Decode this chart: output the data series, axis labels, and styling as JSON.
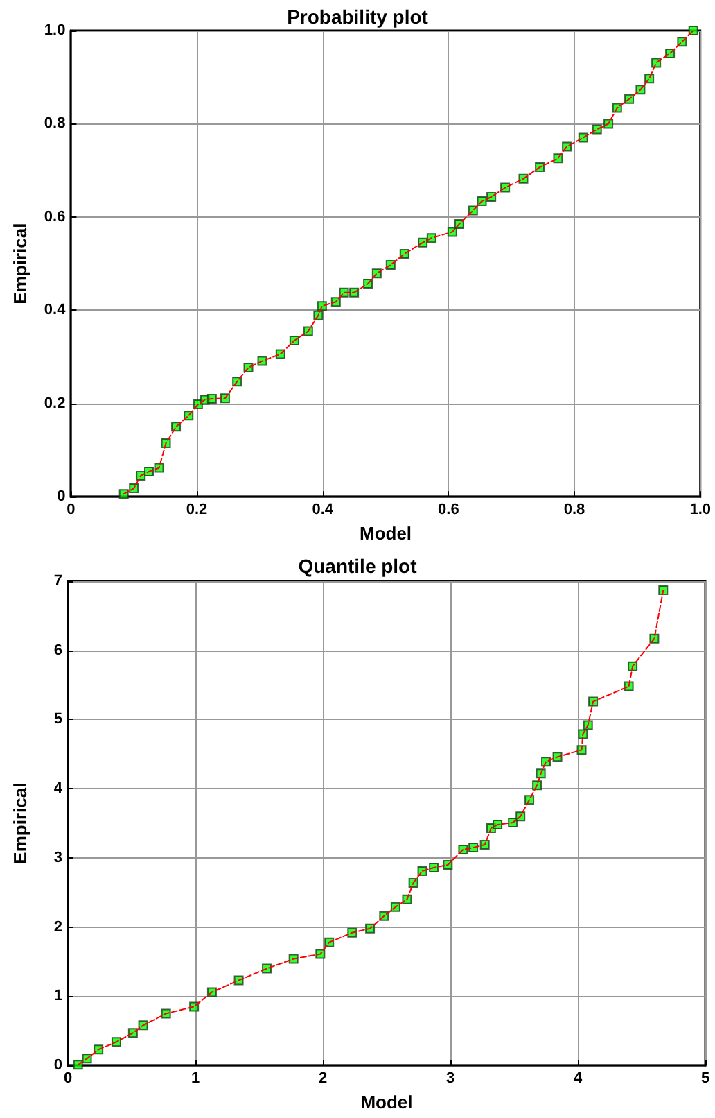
{
  "chart_data": [
    {
      "type": "scatter",
      "title": "Probability plot",
      "xlabel": "Model",
      "ylabel": "Empirical",
      "xlim": [
        0,
        1
      ],
      "ylim": [
        0,
        1
      ],
      "xticks": [
        0,
        0.2,
        0.4,
        0.6,
        0.8,
        {
          "value": 1,
          "label": "1.0"
        }
      ],
      "yticks": [
        0,
        0.2,
        0.4,
        0.6,
        0.8,
        {
          "value": 1,
          "label": "1.0"
        }
      ],
      "grid": true,
      "series": [
        {
          "type": "line",
          "color": "#ff0000",
          "line_style": "dashed",
          "marker": "none",
          "x": [
            0.084,
            0.1,
            0.111,
            0.124,
            0.14,
            0.151,
            0.167,
            0.187,
            0.202,
            0.213,
            0.224,
            0.245,
            0.264,
            0.282,
            0.304,
            0.333,
            0.355,
            0.377,
            0.393,
            0.399,
            0.421,
            0.434,
            0.45,
            0.472,
            0.486,
            0.508,
            0.53,
            0.559,
            0.573,
            0.606,
            0.617,
            0.639,
            0.653,
            0.668,
            0.69,
            0.719,
            0.745,
            0.774,
            0.788,
            0.814,
            0.836,
            0.854,
            0.868,
            0.887,
            0.905,
            0.919,
            0.93,
            0.952,
            0.971,
            0.989
          ],
          "values": [
            0.006,
            0.018,
            0.045,
            0.054,
            0.062,
            0.115,
            0.15,
            0.174,
            0.198,
            0.208,
            0.21,
            0.211,
            0.247,
            0.277,
            0.291,
            0.306,
            0.335,
            0.355,
            0.389,
            0.409,
            0.418,
            0.438,
            0.438,
            0.457,
            0.479,
            0.497,
            0.521,
            0.545,
            0.555,
            0.568,
            0.585,
            0.614,
            0.634,
            0.643,
            0.663,
            0.682,
            0.707,
            0.726,
            0.751,
            0.77,
            0.788,
            0.8,
            0.834,
            0.853,
            0.873,
            0.897,
            0.931,
            0.951,
            0.976,
            1.0
          ]
        },
        {
          "color": "#00ff00",
          "marker": "square",
          "x": [
            0.084,
            0.1,
            0.111,
            0.124,
            0.14,
            0.151,
            0.167,
            0.187,
            0.202,
            0.213,
            0.224,
            0.245,
            0.264,
            0.282,
            0.304,
            0.333,
            0.355,
            0.377,
            0.393,
            0.399,
            0.421,
            0.434,
            0.45,
            0.472,
            0.486,
            0.508,
            0.53,
            0.559,
            0.573,
            0.606,
            0.617,
            0.639,
            0.653,
            0.668,
            0.69,
            0.719,
            0.745,
            0.774,
            0.788,
            0.814,
            0.836,
            0.854,
            0.868,
            0.887,
            0.905,
            0.919,
            0.93,
            0.952,
            0.971,
            0.989
          ],
          "values": [
            0.006,
            0.018,
            0.045,
            0.054,
            0.062,
            0.115,
            0.15,
            0.174,
            0.198,
            0.208,
            0.21,
            0.211,
            0.247,
            0.277,
            0.291,
            0.306,
            0.335,
            0.355,
            0.389,
            0.409,
            0.418,
            0.438,
            0.438,
            0.457,
            0.479,
            0.497,
            0.521,
            0.545,
            0.555,
            0.568,
            0.585,
            0.614,
            0.634,
            0.643,
            0.663,
            0.682,
            0.707,
            0.726,
            0.751,
            0.77,
            0.788,
            0.8,
            0.834,
            0.853,
            0.873,
            0.897,
            0.931,
            0.951,
            0.976,
            1.0
          ]
        }
      ]
    },
    {
      "type": "scatter",
      "title": "Quantile plot",
      "xlabel": "Model",
      "ylabel": "Empirical",
      "xlim": [
        0,
        5
      ],
      "ylim": [
        0,
        7
      ],
      "xticks": [
        0,
        1,
        2,
        3,
        4,
        5
      ],
      "yticks": [
        0,
        1,
        2,
        3,
        4,
        5,
        6,
        7
      ],
      "grid": true,
      "series": [
        {
          "type": "line",
          "color": "#ff0000",
          "line_style": "dashed",
          "marker": "none",
          "x": [
            0.08,
            0.15,
            0.24,
            0.38,
            0.51,
            0.59,
            0.77,
            0.99,
            1.13,
            1.34,
            1.56,
            1.77,
            1.98,
            2.05,
            2.23,
            2.37,
            2.48,
            2.57,
            2.66,
            2.71,
            2.78,
            2.87,
            2.98,
            3.1,
            3.18,
            3.27,
            3.32,
            3.37,
            3.49,
            3.55,
            3.62,
            3.68,
            3.71,
            3.75,
            3.84,
            4.03,
            4.04,
            4.08,
            4.12,
            4.4,
            4.43,
            4.6,
            4.67
          ],
          "values": [
            0.01,
            0.1,
            0.23,
            0.34,
            0.47,
            0.58,
            0.75,
            0.85,
            1.06,
            1.23,
            1.4,
            1.54,
            1.61,
            1.78,
            1.92,
            1.98,
            2.16,
            2.29,
            2.4,
            2.64,
            2.81,
            2.86,
            2.9,
            3.12,
            3.15,
            3.19,
            3.43,
            3.48,
            3.51,
            3.6,
            3.84,
            4.05,
            4.22,
            4.39,
            4.46,
            4.56,
            4.79,
            4.92,
            5.26,
            5.48,
            5.77,
            6.17,
            6.87
          ]
        },
        {
          "color": "#00ff00",
          "marker": "square",
          "x": [
            0.08,
            0.15,
            0.24,
            0.38,
            0.51,
            0.59,
            0.77,
            0.99,
            1.13,
            1.34,
            1.56,
            1.77,
            1.98,
            2.05,
            2.23,
            2.37,
            2.48,
            2.57,
            2.66,
            2.71,
            2.78,
            2.87,
            2.98,
            3.1,
            3.18,
            3.27,
            3.32,
            3.37,
            3.49,
            3.55,
            3.62,
            3.68,
            3.71,
            3.75,
            3.84,
            4.03,
            4.04,
            4.08,
            4.12,
            4.4,
            4.43,
            4.6,
            4.67
          ],
          "values": [
            0.01,
            0.1,
            0.23,
            0.34,
            0.47,
            0.58,
            0.75,
            0.85,
            1.06,
            1.23,
            1.4,
            1.54,
            1.61,
            1.78,
            1.92,
            1.98,
            2.16,
            2.29,
            2.4,
            2.64,
            2.81,
            2.86,
            2.9,
            3.12,
            3.15,
            3.19,
            3.43,
            3.48,
            3.51,
            3.6,
            3.84,
            4.05,
            4.22,
            4.39,
            4.46,
            4.56,
            4.79,
            4.92,
            5.26,
            5.48,
            5.77,
            6.17,
            6.87
          ]
        }
      ]
    }
  ]
}
